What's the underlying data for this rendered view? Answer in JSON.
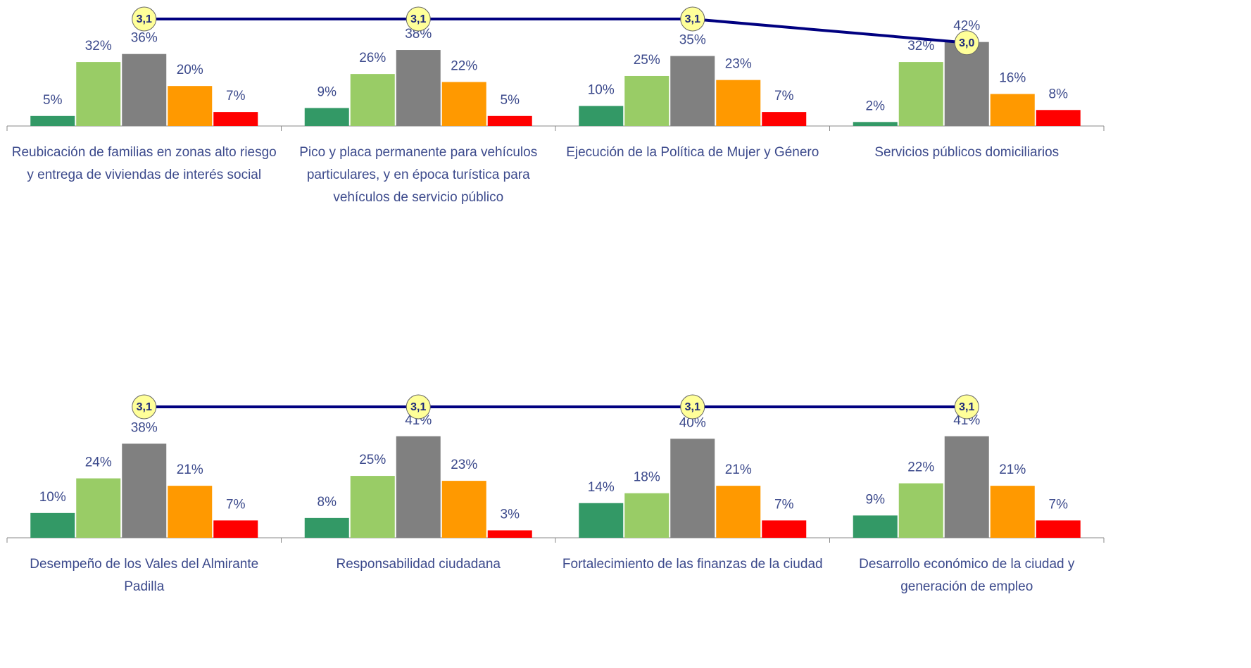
{
  "chart_data": [
    {
      "type": "bar",
      "categories": [
        "Reubicación de familias en zonas alto riesgo y entrega de viviendas de interés social",
        "Pico y placa permanente para vehículos particulares, y en época turística para vehículos de servicio público",
        "Ejecución de la Política de Mujer y Género",
        "Servicios públicos domiciliarios"
      ],
      "ylim": [
        0,
        63
      ],
      "y2lim": [
        2.65,
        3.18
      ],
      "series": [
        {
          "color": "#339966",
          "values": [
            5,
            9,
            10,
            2
          ],
          "value_labels": [
            "5%",
            "9%",
            "10%",
            "2%"
          ]
        },
        {
          "color": "#99cc66",
          "values": [
            32,
            26,
            25,
            32
          ],
          "value_labels": [
            "32%",
            "26%",
            "25%",
            "32%"
          ]
        },
        {
          "color": "#808080",
          "values": [
            36,
            38,
            35,
            42
          ],
          "value_labels": [
            "36%",
            "38%",
            "35%",
            "42%"
          ]
        },
        {
          "color": "#ff9900",
          "values": [
            20,
            22,
            23,
            16
          ],
          "value_labels": [
            "20%",
            "22%",
            "23%",
            "16%"
          ]
        },
        {
          "color": "#ff0000",
          "values": [
            7,
            5,
            7,
            8
          ],
          "value_labels": [
            "7%",
            "5%",
            "7%",
            "8%"
          ]
        },
        {
          "type": "line",
          "axis": "y2",
          "color": "#000080",
          "values": [
            3.1,
            3.1,
            3.1,
            3.0
          ],
          "value_labels": [
            "3,1",
            "3,1",
            "3,1",
            "3,0"
          ]
        }
      ]
    },
    {
      "type": "bar",
      "categories": [
        "Desempeño de los Vales del Almirante Padilla",
        "Responsabilidad ciudadana",
        "Fortalecimiento de las finanzas de la ciudad",
        "Desarrollo económico de la ciudad y generación de empleo"
      ],
      "ylim": [
        0,
        58
      ],
      "y2lim": [
        0,
        3.4
      ],
      "series": [
        {
          "color": "#339966",
          "values": [
            10,
            8,
            14,
            9
          ],
          "value_labels": [
            "10%",
            "8%",
            "14%",
            "9%"
          ]
        },
        {
          "color": "#99cc66",
          "values": [
            24,
            25,
            18,
            22
          ],
          "value_labels": [
            "24%",
            "25%",
            "18%",
            "22%"
          ]
        },
        {
          "color": "#808080",
          "values": [
            38,
            41,
            40,
            41
          ],
          "value_labels": [
            "38%",
            "41%",
            "40%",
            "41%"
          ]
        },
        {
          "color": "#ff9900",
          "values": [
            21,
            23,
            21,
            21
          ],
          "value_labels": [
            "21%",
            "23%",
            "21%",
            "21%"
          ]
        },
        {
          "color": "#ff0000",
          "values": [
            7,
            3,
            7,
            7
          ],
          "value_labels": [
            "7%",
            "3%",
            "7%",
            "7%"
          ]
        },
        {
          "type": "line",
          "axis": "y2",
          "color": "#000080",
          "values": [
            3.1,
            3.1,
            3.1,
            3.1
          ],
          "value_labels": [
            "3,1",
            "3,1",
            "3,1",
            "3,1"
          ]
        }
      ]
    }
  ]
}
